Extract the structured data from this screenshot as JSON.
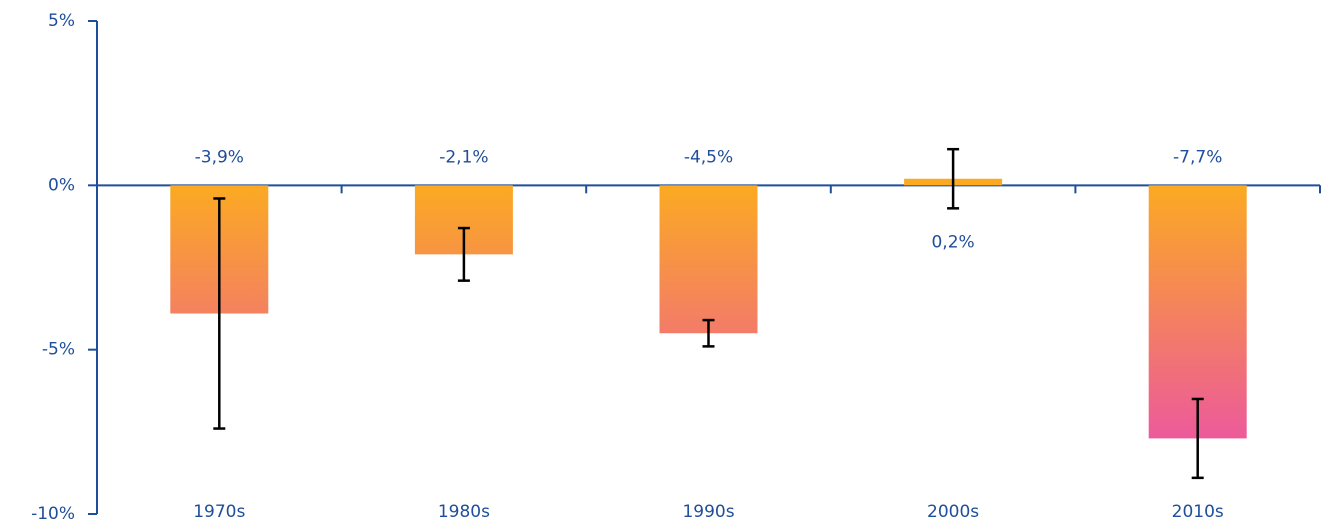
{
  "chart_data": {
    "type": "bar",
    "categories": [
      "1970s",
      "1980s",
      "1990s",
      "2000s",
      "2010s"
    ],
    "values": [
      -3.9,
      -2.1,
      -4.5,
      0.2,
      -7.7
    ],
    "value_labels": [
      "-3,9%",
      "-2,1%",
      "-4,5%",
      "0,2%",
      "-7,7%"
    ],
    "errors": [
      3.5,
      0.8,
      0.4,
      0.9,
      1.2
    ],
    "color": "#FBAA22",
    "color_end": "#EC579F",
    "ylim": [
      -10,
      5
    ],
    "yticks": [
      {
        "value": -10,
        "label": "-10%"
      },
      {
        "value": -5,
        "label": "-5%"
      },
      {
        "value": 0,
        "label": "0%"
      },
      {
        "value": 5,
        "label": "5%"
      }
    ],
    "grid": false
  }
}
